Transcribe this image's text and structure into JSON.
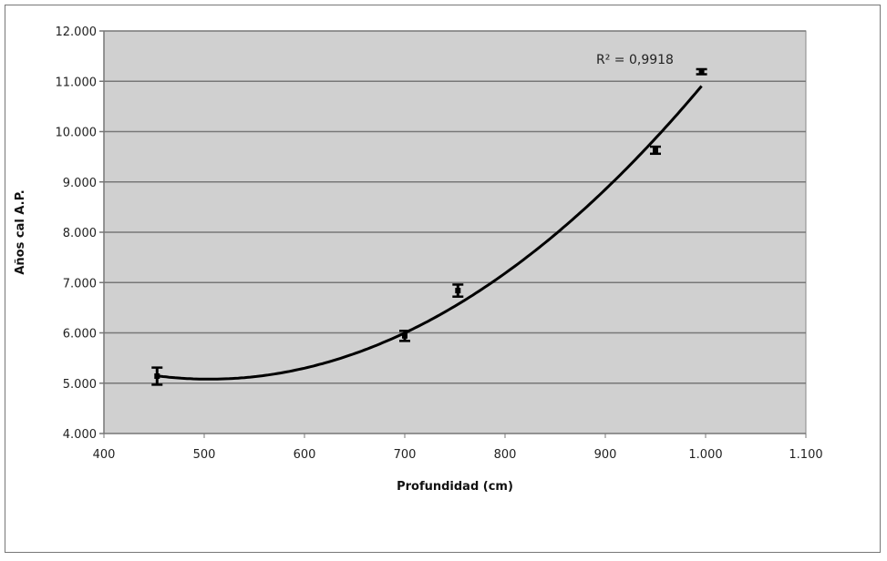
{
  "chart_data": {
    "type": "scatter",
    "title": "",
    "xlabel": "Profundidad (cm)",
    "ylabel": "Años cal A.P.",
    "xlim": [
      400,
      1100
    ],
    "ylim": [
      4000,
      12000
    ],
    "x_ticks": [
      400,
      500,
      600,
      700,
      800,
      900,
      1000,
      1100
    ],
    "x_tick_labels": [
      "400",
      "500",
      "600",
      "700",
      "800",
      "900",
      "1.000",
      "1.100"
    ],
    "y_ticks": [
      4000,
      5000,
      6000,
      7000,
      8000,
      9000,
      10000,
      11000,
      12000
    ],
    "y_tick_labels": [
      "4.000",
      "5.000",
      "6.000",
      "7.000",
      "8.000",
      "9.000",
      "10.000",
      "11.000",
      "12.000"
    ],
    "grid": "horizontal",
    "plot_background": "#d0d0d0",
    "points": [
      {
        "x": 453,
        "y": 5140,
        "err": 170
      },
      {
        "x": 700,
        "y": 5940,
        "err": 100
      },
      {
        "x": 753,
        "y": 6840,
        "err": 120
      },
      {
        "x": 950,
        "y": 9630,
        "err": 70
      },
      {
        "x": 996,
        "y": 11190,
        "err": 50
      }
    ],
    "trendline": {
      "type": "polynomial-2",
      "coefficients": [
        0.02416,
        -24.4,
        11241
      ],
      "x_range": [
        453,
        996
      ],
      "r2_label": "R² = 0,9918"
    }
  }
}
